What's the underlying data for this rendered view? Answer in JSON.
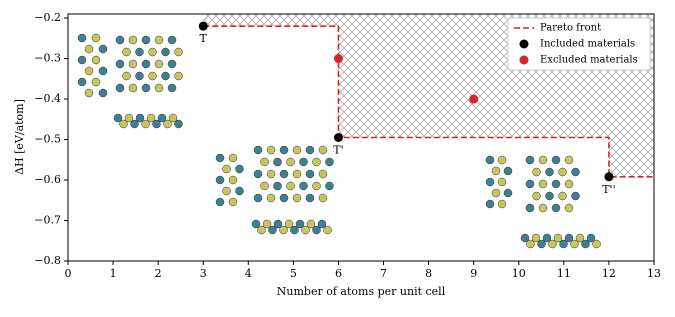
{
  "chart_data": {
    "type": "scatter",
    "x_label": "Number of atoms per unit cell",
    "y_label": "ΔH [eV/atom]",
    "xlim": [
      0,
      13
    ],
    "ylim": [
      -0.8,
      -0.19
    ],
    "xticks": [
      0,
      1,
      2,
      3,
      4,
      5,
      6,
      7,
      8,
      9,
      10,
      11,
      12,
      13
    ],
    "yticks": [
      {
        "value": -0.8,
        "label": "−0.8"
      },
      {
        "value": -0.7,
        "label": "−0.7"
      },
      {
        "value": -0.6,
        "label": "−0.6"
      },
      {
        "value": -0.5,
        "label": "−0.5"
      },
      {
        "value": -0.4,
        "label": "−0.4"
      },
      {
        "value": -0.3,
        "label": "−0.3"
      },
      {
        "value": -0.2,
        "label": "−0.2"
      }
    ],
    "legend": "upper right",
    "series": [
      {
        "name": "Pareto front",
        "mode": "line",
        "color": "#d62728",
        "x": [
          3,
          6,
          6,
          12,
          12,
          13
        ],
        "values": [
          -0.22,
          -0.22,
          -0.495,
          -0.495,
          -0.592,
          -0.592
        ]
      },
      {
        "name": "Included materials",
        "mode": "points",
        "color": "#000000",
        "x": [
          3,
          6,
          12
        ],
        "values": [
          -0.22,
          -0.495,
          -0.592
        ],
        "point_labels": [
          "T",
          "T'",
          "T''"
        ]
      },
      {
        "name": "Excluded materials",
        "mode": "points",
        "color": "#d62728",
        "x": [
          6,
          9
        ],
        "values": [
          -0.3,
          -0.4
        ]
      }
    ]
  }
}
